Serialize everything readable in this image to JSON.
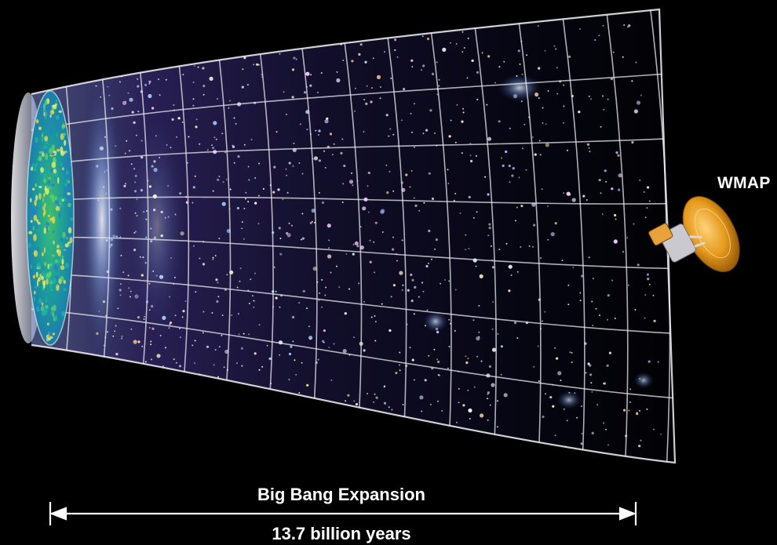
{
  "figure": {
    "satellite_label": "WMAP",
    "expansion_label": "Big Bang Expansion",
    "duration_label": "13.7 billion years"
  },
  "colors": {
    "background": "#000000",
    "grid_lines": "#e8e8f0",
    "cmb_map": "#2aa58c",
    "galaxy_glow": "#9fb9ff",
    "satellite_gold": "#e59a1c",
    "label_text": "#ffffff"
  }
}
